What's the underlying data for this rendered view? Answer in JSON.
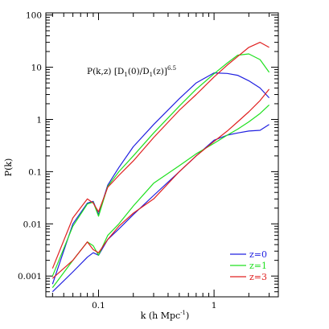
{
  "chart_data": {
    "type": "line",
    "xlabel": "k (h Mpc",
    "xlabel_sup": "-1",
    "xlabel_close": ")",
    "ylabel": "P(k)",
    "annotation": {
      "main": "P(k,z) [D",
      "sub1": "1",
      "mid": "(0)/D",
      "sub2": "1",
      "end": "(z)]",
      "sup": "6.5"
    },
    "xscale": "log",
    "yscale": "log",
    "xlim": [
      0.035,
      3.6
    ],
    "ylim": [
      0.0004,
      110
    ],
    "xticks": [
      {
        "value": 0.1,
        "label": "0.1"
      },
      {
        "value": 1,
        "label": "1"
      }
    ],
    "yticks": [
      {
        "value": 0.001,
        "label": "0.001"
      },
      {
        "value": 0.01,
        "label": "0.01"
      },
      {
        "value": 0.1,
        "label": "0.1"
      },
      {
        "value": 1,
        "label": "1"
      },
      {
        "value": 10,
        "label": "10"
      },
      {
        "value": 100,
        "label": "100"
      }
    ],
    "legend_position": "bottom-right",
    "series": [
      {
        "name": "z=0",
        "color": "#2020e0",
        "curves": [
          {
            "x": [
              0.04,
              0.06,
              0.08,
              0.09,
              0.1,
              0.12,
              0.15,
              0.2,
              0.3,
              0.5,
              0.7,
              1.0,
              1.3,
              1.6,
              2.0,
              2.5,
              3.0
            ],
            "y": [
              0.0007,
              0.01,
              0.025,
              0.027,
              0.015,
              0.055,
              0.12,
              0.3,
              0.8,
              2.5,
              5.0,
              7.8,
              7.6,
              7.0,
              5.5,
              4.0,
              2.6
            ]
          },
          {
            "x": [
              0.04,
              0.06,
              0.08,
              0.09,
              0.1,
              0.12,
              0.15,
              0.2,
              0.3,
              0.5,
              0.7,
              1.0,
              1.3,
              1.6,
              2.0,
              2.5,
              3.0
            ],
            "y": [
              0.0005,
              0.0012,
              0.0023,
              0.0028,
              0.0025,
              0.005,
              0.008,
              0.015,
              0.035,
              0.1,
              0.2,
              0.4,
              0.5,
              0.55,
              0.6,
              0.62,
              0.8
            ]
          }
        ]
      },
      {
        "name": "z=1",
        "color": "#20e020",
        "curves": [
          {
            "x": [
              0.04,
              0.06,
              0.08,
              0.09,
              0.1,
              0.12,
              0.15,
              0.2,
              0.3,
              0.5,
              0.7,
              1.0,
              1.3,
              1.6,
              2.0,
              2.5,
              3.0
            ],
            "y": [
              0.001,
              0.009,
              0.024,
              0.026,
              0.014,
              0.052,
              0.1,
              0.2,
              0.55,
              1.8,
              3.8,
              7.5,
              12,
              17,
              18,
              14,
              8
            ]
          },
          {
            "x": [
              0.04,
              0.06,
              0.08,
              0.09,
              0.1,
              0.12,
              0.15,
              0.2,
              0.3,
              0.5,
              0.7,
              1.0,
              1.3,
              1.6,
              2.0,
              2.5,
              3.0
            ],
            "y": [
              0.0006,
              0.002,
              0.0045,
              0.0038,
              0.0025,
              0.006,
              0.01,
              0.022,
              0.06,
              0.13,
              0.22,
              0.35,
              0.5,
              0.65,
              0.9,
              1.3,
              1.9
            ]
          }
        ]
      },
      {
        "name": "z=3",
        "color": "#e02020",
        "curves": [
          {
            "x": [
              0.04,
              0.06,
              0.08,
              0.09,
              0.1,
              0.12,
              0.15,
              0.2,
              0.3,
              0.5,
              0.7,
              1.0,
              1.3,
              1.6,
              2.0,
              2.5,
              3.0
            ],
            "y": [
              0.0014,
              0.013,
              0.03,
              0.025,
              0.017,
              0.05,
              0.085,
              0.16,
              0.45,
              1.5,
              3.0,
              6.5,
              11,
              16,
              24,
              30,
              24
            ]
          },
          {
            "x": [
              0.04,
              0.06,
              0.08,
              0.09,
              0.1,
              0.12,
              0.15,
              0.2,
              0.3,
              0.5,
              0.7,
              1.0,
              1.3,
              1.6,
              2.0,
              2.5,
              3.0
            ],
            "y": [
              0.0009,
              0.002,
              0.0045,
              0.0032,
              0.0028,
              0.005,
              0.009,
              0.016,
              0.03,
              0.1,
              0.2,
              0.38,
              0.6,
              0.9,
              1.4,
              2.3,
              3.8
            ]
          }
        ]
      }
    ]
  }
}
